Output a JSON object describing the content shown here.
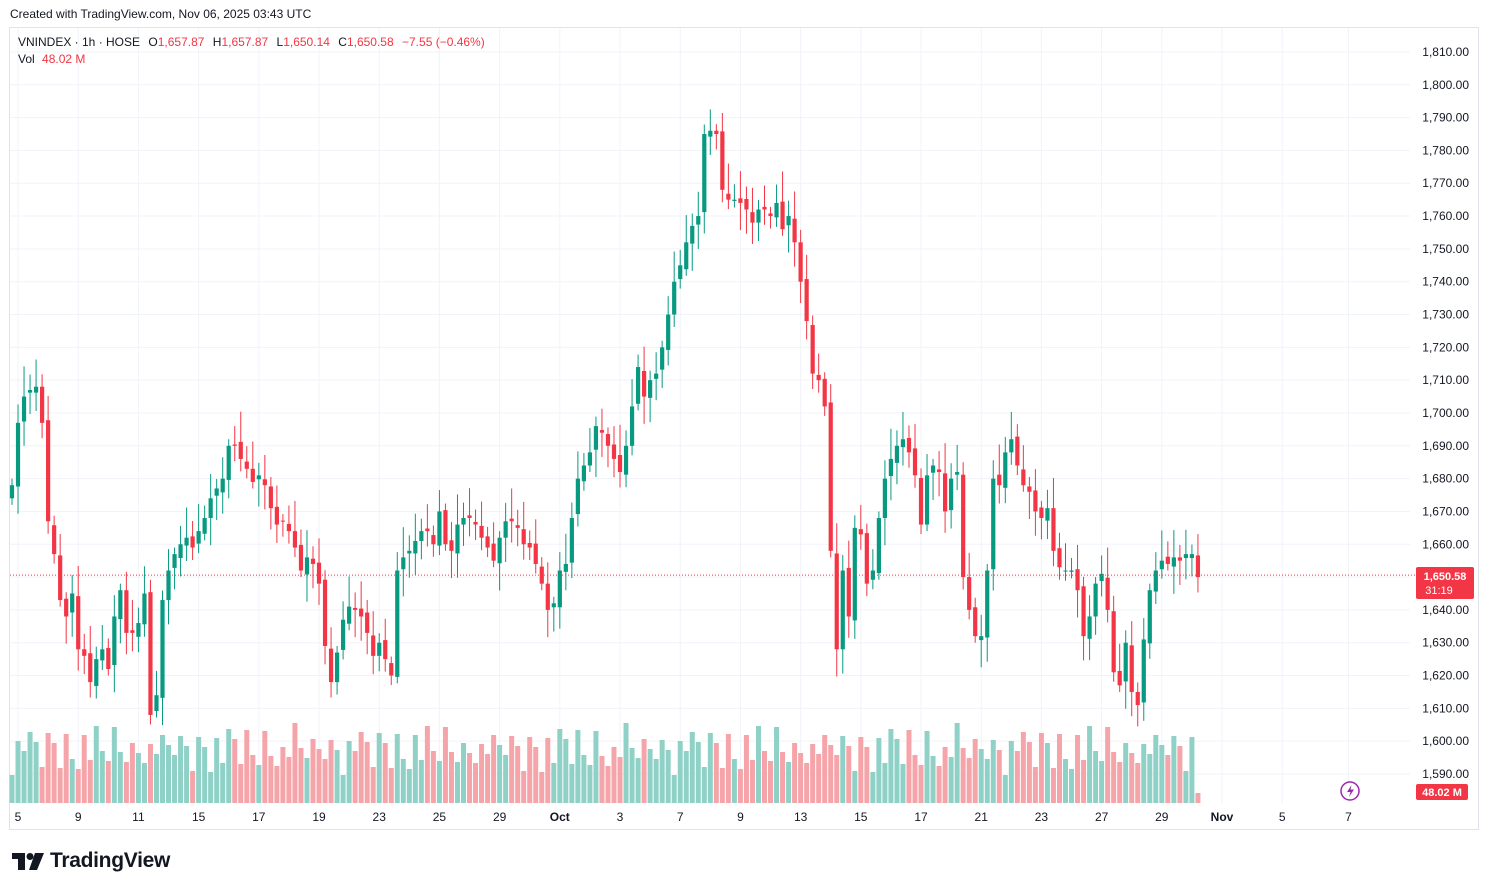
{
  "header": {
    "created_text": "Created with TradingView.com, Nov 06, 2025 03:43 UTC"
  },
  "legend": {
    "symbol": "VNINDEX · 1h · HOSE",
    "open_label": "O",
    "open": "1,657.87",
    "high_label": "H",
    "high": "1,657.87",
    "low_label": "L",
    "low": "1,650.14",
    "close_label": "C",
    "close": "1,650.58",
    "change": "−7.55 (−0.46%)",
    "vol_label": "Vol",
    "vol": "48.02 M"
  },
  "price_badge": {
    "price": "1,650.58",
    "countdown": "31:19"
  },
  "vol_badge": "48.02 M",
  "brand": {
    "name": "TradingView"
  },
  "colors": {
    "up": "#089981",
    "down": "#f23645",
    "up_vol": "#8fd1c6",
    "down_vol": "#f5a5a9",
    "grid": "#f0f3fa"
  },
  "chart_data": {
    "type": "candlestick",
    "symbol": "VNINDEX",
    "interval": "1h",
    "exchange": "HOSE",
    "y_axis": {
      "min": 1582,
      "max": 1817,
      "ticks": [
        "1,590.00",
        "1,600.00",
        "1,610.00",
        "1,620.00",
        "1,630.00",
        "1,640.00",
        "1,650.00",
        "1,660.00",
        "1,670.00",
        "1,680.00",
        "1,690.00",
        "1,700.00",
        "1,710.00",
        "1,720.00",
        "1,730.00",
        "1,740.00",
        "1,750.00",
        "1,760.00",
        "1,770.00",
        "1,780.00",
        "1,790.00",
        "1,800.00",
        "1,810.00"
      ]
    },
    "x_axis": {
      "labels": [
        {
          "label": "5",
          "i": 1
        },
        {
          "label": "9",
          "i": 11
        },
        {
          "label": "11",
          "i": 21
        },
        {
          "label": "15",
          "i": 31
        },
        {
          "label": "17",
          "i": 41
        },
        {
          "label": "19",
          "i": 51
        },
        {
          "label": "23",
          "i": 61
        },
        {
          "label": "25",
          "i": 71
        },
        {
          "label": "29",
          "i": 81
        },
        {
          "label": "Oct",
          "i": 91
        },
        {
          "label": "3",
          "i": 101
        },
        {
          "label": "7",
          "i": 111
        },
        {
          "label": "9",
          "i": 121
        },
        {
          "label": "13",
          "i": 131
        },
        {
          "label": "15",
          "i": 141
        },
        {
          "label": "17",
          "i": 151
        },
        {
          "label": "21",
          "i": 161
        },
        {
          "label": "23",
          "i": 171
        },
        {
          "label": "27",
          "i": 181
        },
        {
          "label": "29",
          "i": 191
        },
        {
          "label": "Nov",
          "i": 201
        },
        {
          "label": "5",
          "i": 211
        },
        {
          "label": "7",
          "i": 222
        }
      ]
    },
    "last_price": 1650.58,
    "closes": [
      1678,
      1697,
      1705,
      1707,
      1708,
      1697,
      1667,
      1657,
      1643,
      1638,
      1645,
      1628,
      1626,
      1618,
      1625,
      1628,
      1622,
      1638,
      1646,
      1633,
      1633,
      1636,
      1645,
      1608,
      1614,
      1643,
      1652,
      1657,
      1660,
      1662,
      1659,
      1664,
      1668,
      1674,
      1677,
      1680,
      1690,
      1690,
      1686,
      1683,
      1679,
      1681,
      1678,
      1671,
      1666,
      1667,
      1664,
      1659,
      1652,
      1656,
      1654,
      1648,
      1629,
      1618,
      1627,
      1637,
      1641,
      1640,
      1638,
      1633,
      1626,
      1630,
      1625,
      1620,
      1652,
      1656,
      1658,
      1661,
      1664,
      1664,
      1660,
      1670,
      1660,
      1658,
      1666,
      1668,
      1668,
      1666,
      1662,
      1659,
      1655,
      1662,
      1667,
      1667,
      1665,
      1660,
      1659,
      1654,
      1648,
      1640,
      1642,
      1652,
      1654,
      1668,
      1680,
      1684,
      1688,
      1696,
      1694,
      1690,
      1686,
      1682,
      1690,
      1702,
      1714,
      1705,
      1710,
      1712,
      1720,
      1730,
      1740,
      1745,
      1752,
      1757,
      1760,
      1785,
      1786,
      1785,
      1768,
      1765,
      1765,
      1764,
      1762,
      1758,
      1762,
      1762,
      1760,
      1764,
      1756,
      1760,
      1752,
      1740,
      1728,
      1712,
      1710,
      1702,
      1658,
      1628,
      1652,
      1638,
      1665,
      1663,
      1648,
      1652,
      1668,
      1680,
      1686,
      1690,
      1692,
      1688,
      1681,
      1666,
      1681,
      1684,
      1682,
      1670,
      1680,
      1682,
      1650,
      1640,
      1632,
      1632,
      1652,
      1680,
      1678,
      1688,
      1692,
      1684,
      1678,
      1676,
      1670,
      1668,
      1671,
      1658,
      1653,
      1652,
      1652,
      1646,
      1632,
      1638,
      1648,
      1651,
      1640,
      1621,
      1617,
      1630,
      1615,
      1611,
      1631,
      1646,
      1652,
      1655,
      1654,
      1656,
      1655,
      1657,
      1657,
      1650
    ],
    "volume_unit": "M",
    "last_volume": 48.02
  }
}
